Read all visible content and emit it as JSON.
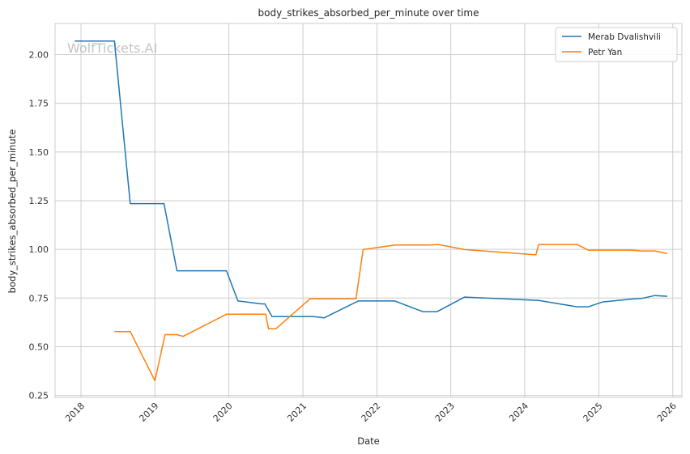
{
  "watermark": "WolfTickets.AI",
  "chart_data": {
    "type": "line",
    "title": "body_strikes_absorbed_per_minute over time",
    "xlabel": "Date",
    "ylabel": "body_strikes_absorbed_per_minute",
    "xlim": [
      "2017-08-26",
      "2026-02-15"
    ],
    "ylim": [
      0.24,
      2.16
    ],
    "x_ticks": [
      "2018",
      "2019",
      "2020",
      "2021",
      "2022",
      "2023",
      "2024",
      "2025",
      "2026"
    ],
    "y_ticks": [
      "0.25",
      "0.50",
      "0.75",
      "1.00",
      "1.25",
      "1.50",
      "1.75",
      "2.00"
    ],
    "grid": true,
    "legend_position": "top-right",
    "series": [
      {
        "name": "Merab Dvalishvili",
        "color": "#1f77b4",
        "points": [
          [
            "2017-12-01",
            2.07
          ],
          [
            "2018-06-15",
            2.07
          ],
          [
            "2018-09-01",
            1.235
          ],
          [
            "2019-02-15",
            1.235
          ],
          [
            "2019-04-20",
            0.89
          ],
          [
            "2019-12-20",
            0.89
          ],
          [
            "2020-02-15",
            0.735
          ],
          [
            "2020-06-10",
            0.72
          ],
          [
            "2020-06-27",
            0.72
          ],
          [
            "2020-08-01",
            0.655
          ],
          [
            "2021-02-20",
            0.655
          ],
          [
            "2021-04-15",
            0.648
          ],
          [
            "2021-10-01",
            0.735
          ],
          [
            "2022-03-31",
            0.735
          ],
          [
            "2022-08-15",
            0.68
          ],
          [
            "2022-10-25",
            0.68
          ],
          [
            "2023-03-10",
            0.755
          ],
          [
            "2024-03-10",
            0.738
          ],
          [
            "2024-09-15",
            0.705
          ],
          [
            "2024-11-10",
            0.705
          ],
          [
            "2025-01-20",
            0.73
          ],
          [
            "2025-06-15",
            0.745
          ],
          [
            "2025-07-30",
            0.748
          ],
          [
            "2025-10-05",
            0.763
          ],
          [
            "2025-12-05",
            0.759
          ]
        ]
      },
      {
        "name": "Petr Yan",
        "color": "#ff7f0e",
        "points": [
          [
            "2018-06-15",
            0.578
          ],
          [
            "2018-09-01",
            0.578
          ],
          [
            "2019-01-01",
            0.325
          ],
          [
            "2019-02-20",
            0.562
          ],
          [
            "2019-04-20",
            0.562
          ],
          [
            "2019-05-20",
            0.553
          ],
          [
            "2019-12-20",
            0.667
          ],
          [
            "2020-05-15",
            0.667
          ],
          [
            "2020-07-01",
            0.667
          ],
          [
            "2020-07-15",
            0.592
          ],
          [
            "2020-08-20",
            0.592
          ],
          [
            "2021-02-05",
            0.746
          ],
          [
            "2021-09-20",
            0.746
          ],
          [
            "2021-10-25",
            0.999
          ],
          [
            "2022-03-31",
            1.022
          ],
          [
            "2022-09-15",
            1.022
          ],
          [
            "2022-11-01",
            1.025
          ],
          [
            "2023-03-10",
            0.999
          ],
          [
            "2024-02-25",
            0.972
          ],
          [
            "2024-03-10",
            1.025
          ],
          [
            "2024-09-15",
            1.025
          ],
          [
            "2024-11-10",
            0.996
          ],
          [
            "2025-06-15",
            0.996
          ],
          [
            "2025-07-30",
            0.992
          ],
          [
            "2025-10-05",
            0.992
          ],
          [
            "2025-12-05",
            0.978
          ]
        ]
      }
    ]
  }
}
